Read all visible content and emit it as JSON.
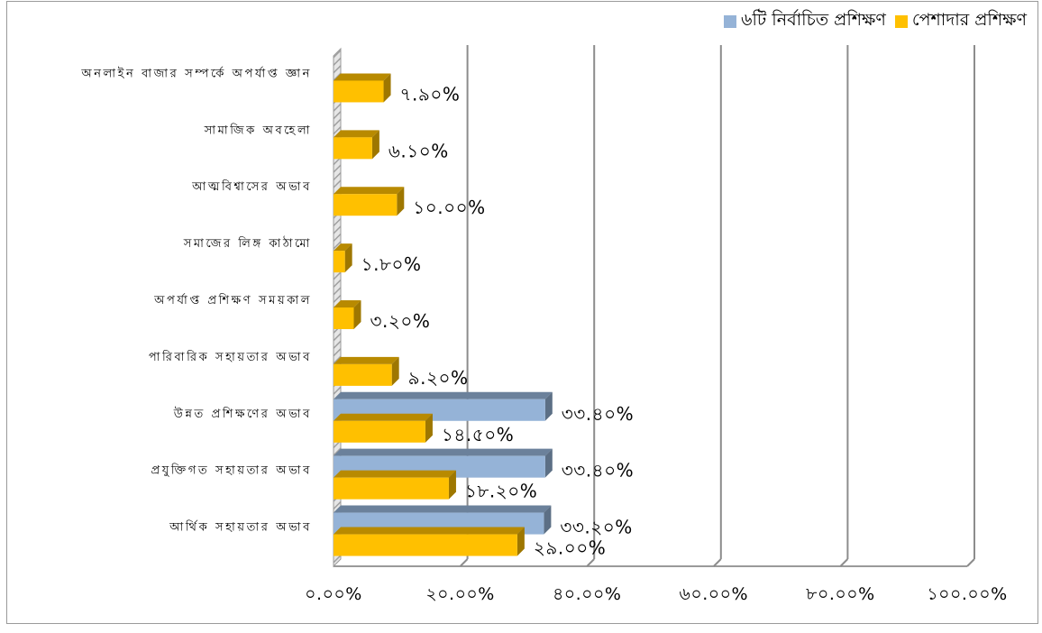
{
  "chart_data": {
    "type": "bar",
    "orientation": "horizontal",
    "style": "3d",
    "categories": [
      "আর্থিক সহায়তার অভাব",
      "প্রযুক্তিগত সহায়তার অভাব",
      "উন্নত প্রশিক্ষণের অভাব",
      "পারিবারিক সহায়তার অভাব",
      "অপর্যাপ্ত প্রশিক্ষণ সময়কাল",
      "সমাজের লিঙ্গ কাঠামো",
      "আত্মবিশ্বাসের অভাব",
      "সামাজিক অবহেলা",
      "অনলাইন বাজার সম্পর্কে অপর্যাপ্ত জ্ঞান"
    ],
    "series": [
      {
        "name": "৬টি নির্বাচিত প্রশিক্ষণ",
        "color": "#95b3d7",
        "values": [
          33.2,
          33.4,
          33.4,
          null,
          null,
          null,
          null,
          null,
          null
        ],
        "labels": [
          "৩৩.২০%",
          "৩৩.৪০%",
          "৩৩.৪০%",
          "",
          "",
          "",
          "",
          "",
          ""
        ]
      },
      {
        "name": "পেশাদার প্রশিক্ষণ",
        "color": "#ffc000",
        "values": [
          29.0,
          18.2,
          14.5,
          9.2,
          3.2,
          1.8,
          10.0,
          6.1,
          7.9
        ],
        "labels": [
          "২৯.০০%",
          "১৮.২০%",
          "১৪.৫০%",
          "৯.২০%",
          "৩.২০%",
          "১.৮০%",
          "১০.০০%",
          "৬.১০%",
          "৭.৯০%"
        ]
      }
    ],
    "xlim": [
      0,
      100
    ],
    "xticks": [
      0,
      20,
      40,
      60,
      80,
      100
    ],
    "xtick_labels": [
      "০.০০%",
      "২০.০০%",
      "৪০.০০%",
      "৬০.০০%",
      "৮০.০০%",
      "১০০.০০%"
    ],
    "grid": true,
    "legend_position": "top-right"
  }
}
